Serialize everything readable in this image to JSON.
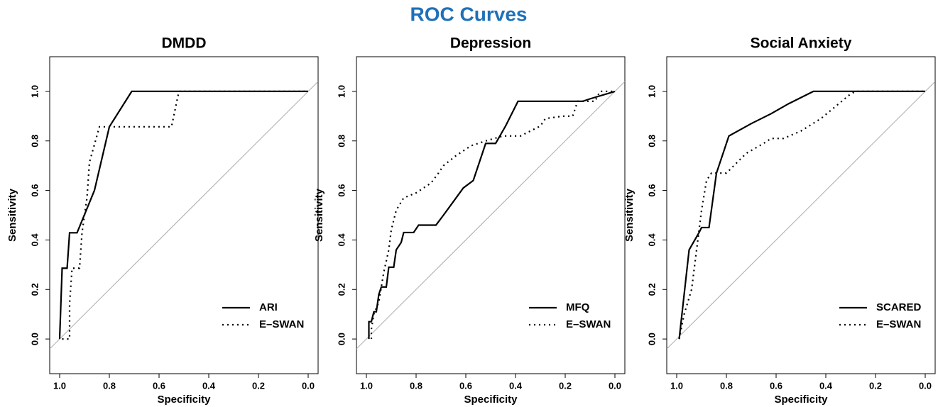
{
  "title": "ROC Curves",
  "chart_data": [
    {
      "type": "line",
      "title": "DMDD",
      "xlabel": "Specificity",
      "ylabel": "Sensitivity",
      "xlim": [
        1.04,
        -0.04
      ],
      "ylim": [
        -0.14,
        1.14
      ],
      "xticks": [
        {
          "value": 1,
          "label": "1.0"
        },
        {
          "value": 0.8,
          "label": "0.8"
        },
        {
          "value": 0.6,
          "label": "0.6"
        },
        {
          "value": 0.4,
          "label": "0.4"
        },
        {
          "value": 0.2,
          "label": "0.2"
        },
        {
          "value": 0,
          "label": "0.0"
        }
      ],
      "yticks": [
        {
          "value": 0,
          "label": "0.0"
        },
        {
          "value": 0.2,
          "label": "0.2"
        },
        {
          "value": 0.4,
          "label": "0.4"
        },
        {
          "value": 0.6,
          "label": "0.6"
        },
        {
          "value": 0.8,
          "label": "0.8"
        },
        {
          "value": 1,
          "label": "1.0"
        }
      ],
      "legend": "bottom-right",
      "series": [
        {
          "name": "ARI",
          "color": "#000000",
          "dash": "solid",
          "x": [
            1,
            0.99,
            0.97,
            0.96,
            0.93,
            0.86,
            0.8,
            0.71,
            0
          ],
          "values": [
            0,
            0.286,
            0.286,
            0.429,
            0.429,
            0.6,
            0.857,
            1,
            1
          ]
        },
        {
          "name": "E–SWAN",
          "color": "#000000",
          "dash": "dotted",
          "x": [
            0.99,
            0.96,
            0.96,
            0.95,
            0.92,
            0.91,
            0.89,
            0.88,
            0.84,
            0.55,
            0.52,
            0
          ],
          "values": [
            0,
            0,
            0.143,
            0.286,
            0.286,
            0.429,
            0.571,
            0.714,
            0.857,
            0.857,
            1,
            1
          ]
        }
      ]
    },
    {
      "type": "line",
      "title": "Depression",
      "xlabel": "Specificity",
      "ylabel": "Sensitivity",
      "xlim": [
        1.04,
        -0.04
      ],
      "ylim": [
        -0.14,
        1.14
      ],
      "xticks": [
        {
          "value": 1,
          "label": "1.0"
        },
        {
          "value": 0.8,
          "label": "0.8"
        },
        {
          "value": 0.6,
          "label": "0.6"
        },
        {
          "value": 0.4,
          "label": "0.4"
        },
        {
          "value": 0.2,
          "label": "0.2"
        },
        {
          "value": 0,
          "label": "0.0"
        }
      ],
      "yticks": [
        {
          "value": 0,
          "label": "0.0"
        },
        {
          "value": 0.2,
          "label": "0.2"
        },
        {
          "value": 0.4,
          "label": "0.4"
        },
        {
          "value": 0.6,
          "label": "0.6"
        },
        {
          "value": 0.8,
          "label": "0.8"
        },
        {
          "value": 1,
          "label": "1.0"
        }
      ],
      "legend": "bottom-right",
      "series": [
        {
          "name": "MFQ",
          "color": "#000000",
          "dash": "solid",
          "x": [
            0.99,
            0.99,
            0.98,
            0.97,
            0.96,
            0.95,
            0.94,
            0.92,
            0.91,
            0.89,
            0.88,
            0.86,
            0.85,
            0.81,
            0.79,
            0.72,
            0.69,
            0.61,
            0.57,
            0.52,
            0.48,
            0.44,
            0.39,
            0.13,
            0.1,
            0
          ],
          "values": [
            0,
            0.07,
            0.07,
            0.11,
            0.11,
            0.18,
            0.21,
            0.21,
            0.29,
            0.29,
            0.36,
            0.39,
            0.43,
            0.43,
            0.46,
            0.46,
            0.5,
            0.61,
            0.64,
            0.79,
            0.79,
            0.86,
            0.96,
            0.96,
            0.97,
            1
          ]
        },
        {
          "name": "E–SWAN",
          "color": "#000000",
          "dash": "dotted",
          "x": [
            0.98,
            0.98,
            0.97,
            0.95,
            0.93,
            0.91,
            0.9,
            0.88,
            0.85,
            0.8,
            0.74,
            0.71,
            0.69,
            0.64,
            0.58,
            0.52,
            0.45,
            0.38,
            0.3,
            0.28,
            0.21,
            0.17,
            0.15,
            0.08,
            0.06,
            0
          ],
          "values": [
            0,
            0.04,
            0.1,
            0.15,
            0.27,
            0.36,
            0.44,
            0.52,
            0.57,
            0.59,
            0.63,
            0.67,
            0.7,
            0.74,
            0.78,
            0.8,
            0.82,
            0.82,
            0.86,
            0.89,
            0.9,
            0.9,
            0.96,
            0.96,
            1,
            1
          ]
        }
      ]
    },
    {
      "type": "line",
      "title": "Social Anxiety",
      "xlabel": "Specificity",
      "ylabel": "Sensitivity",
      "xlim": [
        1.04,
        -0.04
      ],
      "ylim": [
        -0.14,
        1.14
      ],
      "xticks": [
        {
          "value": 1,
          "label": "1.0"
        },
        {
          "value": 0.8,
          "label": "0.8"
        },
        {
          "value": 0.6,
          "label": "0.6"
        },
        {
          "value": 0.4,
          "label": "0.4"
        },
        {
          "value": 0.2,
          "label": "0.2"
        },
        {
          "value": 0,
          "label": "0.0"
        }
      ],
      "yticks": [
        {
          "value": 0,
          "label": "0.0"
        },
        {
          "value": 0.2,
          "label": "0.2"
        },
        {
          "value": 0.4,
          "label": "0.4"
        },
        {
          "value": 0.6,
          "label": "0.6"
        },
        {
          "value": 0.8,
          "label": "0.8"
        },
        {
          "value": 1,
          "label": "1.0"
        }
      ],
      "legend": "bottom-right",
      "series": [
        {
          "name": "SCARED",
          "color": "#000000",
          "dash": "solid",
          "x": [
            0.99,
            0.97,
            0.95,
            0.91,
            0.9,
            0.87,
            0.84,
            0.79,
            0.7,
            0.62,
            0.55,
            0.45,
            0
          ],
          "values": [
            0,
            0.18,
            0.36,
            0.43,
            0.45,
            0.45,
            0.67,
            0.82,
            0.87,
            0.91,
            0.95,
            1,
            1
          ]
        },
        {
          "name": "E–SWAN",
          "color": "#000000",
          "dash": "dotted",
          "x": [
            0.99,
            0.97,
            0.94,
            0.92,
            0.9,
            0.88,
            0.86,
            0.8,
            0.77,
            0.72,
            0.65,
            0.62,
            0.57,
            0.5,
            0.42,
            0.3,
            0.28,
            0
          ],
          "values": [
            0,
            0.1,
            0.2,
            0.36,
            0.52,
            0.64,
            0.67,
            0.67,
            0.7,
            0.75,
            0.79,
            0.81,
            0.81,
            0.84,
            0.89,
            0.99,
            1,
            1
          ]
        }
      ]
    }
  ]
}
